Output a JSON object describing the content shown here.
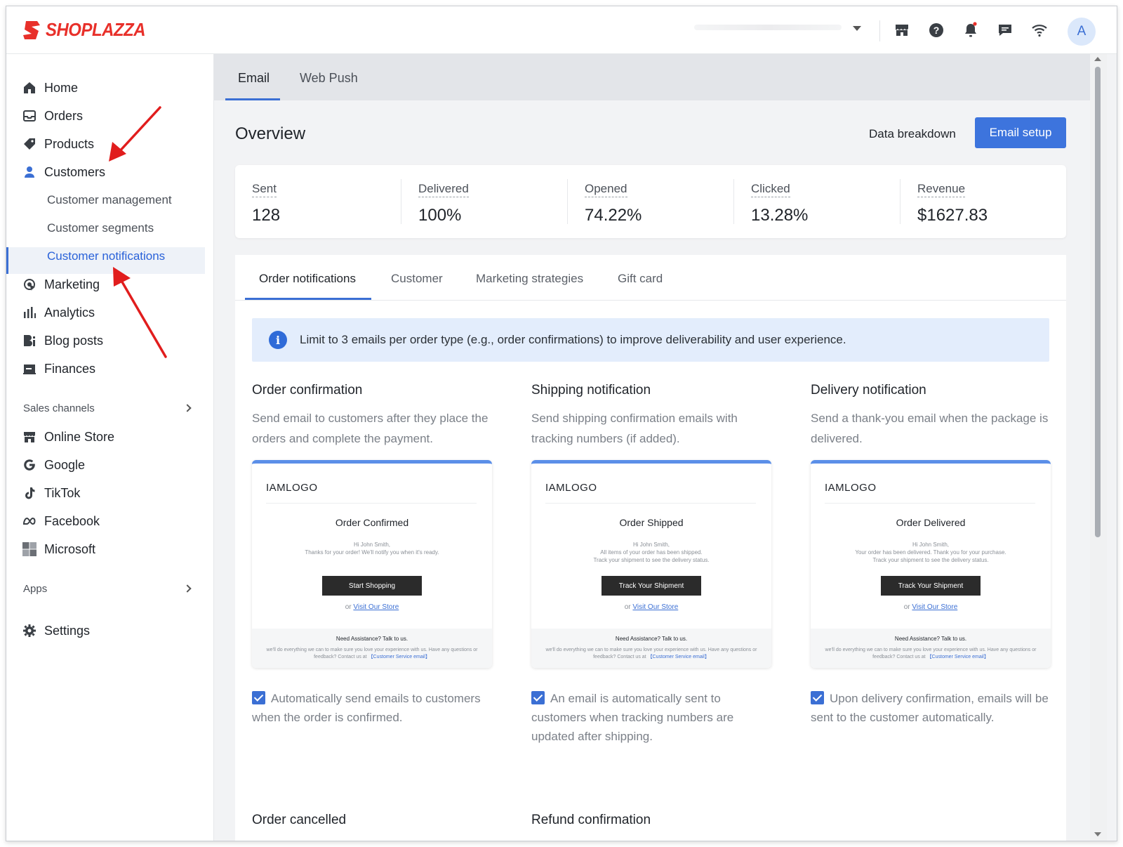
{
  "app": {
    "brand": "SHOPLAZZA",
    "avatar_letter": "A"
  },
  "topbar": {
    "icons": [
      "store-icon",
      "help-icon",
      "bell-icon",
      "message-icon",
      "wifi-icon"
    ]
  },
  "sidebar": {
    "items": [
      {
        "label": "Home",
        "icon": "home-icon"
      },
      {
        "label": "Orders",
        "icon": "orders-icon"
      },
      {
        "label": "Products",
        "icon": "tag-icon"
      },
      {
        "label": "Customers",
        "icon": "person-icon"
      },
      {
        "label": "Marketing",
        "icon": "marketing-icon"
      },
      {
        "label": "Analytics",
        "icon": "bar-chart-icon"
      },
      {
        "label": "Blog posts",
        "icon": "blog-icon"
      },
      {
        "label": "Finances",
        "icon": "finance-icon"
      }
    ],
    "customer_sub": [
      "Customer management",
      "Customer segments",
      "Customer notifications"
    ],
    "sales_channels_label": "Sales channels",
    "channels": [
      {
        "label": "Online Store",
        "icon": "store-icon"
      },
      {
        "label": "Google",
        "icon": "google-icon"
      },
      {
        "label": "TikTok",
        "icon": "tiktok-icon"
      },
      {
        "label": "Facebook",
        "icon": "meta-icon"
      },
      {
        "label": "Microsoft",
        "icon": "microsoft-icon"
      }
    ],
    "apps_label": "Apps",
    "settings_label": "Settings"
  },
  "main": {
    "tabs": [
      "Email",
      "Web Push"
    ],
    "overview_title": "Overview",
    "data_breakdown": "Data breakdown",
    "email_setup": "Email setup",
    "stats": [
      {
        "label": "Sent",
        "value": "128"
      },
      {
        "label": "Delivered",
        "value": "100%"
      },
      {
        "label": "Opened",
        "value": "74.22%"
      },
      {
        "label": "Clicked",
        "value": "13.28%"
      },
      {
        "label": "Revenue",
        "value": "$1627.83"
      }
    ],
    "panel_tabs": [
      "Order notifications",
      "Customer",
      "Marketing strategies",
      "Gift card"
    ],
    "info": "Limit to 3 emails per order type (e.g., order confirmations) to improve deliverability and user experience.",
    "cards": [
      {
        "title": "Order confirmation",
        "desc": "Send email to customers after they place the orders and complete the payment.",
        "preview": {
          "logo": "IAMLOGO",
          "heading": "Order Confirmed",
          "body1": "Hi John Smith,",
          "body2": "Thanks for your order! We'll notify you when it's ready.",
          "body3": "",
          "button": "Start Shopping",
          "or": "or",
          "link": "Visit Our Store",
          "foot_title": "Need Assistance? Talk to us.",
          "foot_body": "we'll do everything we can to make sure you love your experience with us. Have any questions or feedback? Contact us at",
          "foot_link": "【Customer Service email】"
        },
        "check_label": "Automatically send emails to customers when the order is confirmed."
      },
      {
        "title": "Shipping notification",
        "desc": "Send shipping confirmation emails with tracking numbers (if added).",
        "preview": {
          "logo": "IAMLOGO",
          "heading": "Order Shipped",
          "body1": "Hi John Smith,",
          "body2": "All items of your order has been shipped.",
          "body3": "Track your shipment to see the delivery status.",
          "button": "Track Your Shipment",
          "or": "or",
          "link": "Visit Our Store",
          "foot_title": "Need Assistance? Talk to us.",
          "foot_body": "we'll do everything we can to make sure you love your experience with us. Have any questions or feedback? Contact us at",
          "foot_link": "【Customer Service email】"
        },
        "check_label": "An email is automatically sent to customers when tracking numbers are updated after shipping."
      },
      {
        "title": "Delivery notification",
        "desc": "Send a thank-you email when the package is delivered.",
        "preview": {
          "logo": "IAMLOGO",
          "heading": "Order Delivered",
          "body1": "Hi John Smith,",
          "body2": "Your order has been delivered. Thank you for your purchase.",
          "body3": "Track your shipment to see the delivery status.",
          "button": "Track Your Shipment",
          "or": "or",
          "link": "Visit Our Store",
          "foot_title": "Need Assistance? Talk to us.",
          "foot_body": "we'll do everything we can to make sure you love your experience with us. Have any questions or feedback? Contact us at",
          "foot_link": "【Customer Service email】"
        },
        "check_label": "Upon delivery confirmation, emails will be sent to the customer automatically."
      }
    ],
    "bottom_titles": [
      "Order cancelled",
      "Refund confirmation"
    ]
  },
  "annotations": {
    "arrow_color": "#e11d1d"
  }
}
